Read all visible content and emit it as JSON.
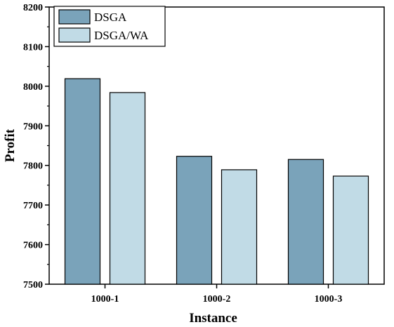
{
  "chart_data": {
    "type": "bar",
    "title": "",
    "xlabel": "Instance",
    "ylabel": "Profit",
    "categories": [
      "1000-1",
      "1000-2",
      "1000-3"
    ],
    "series": [
      {
        "name": "DSGA",
        "values": [
          8019,
          7823,
          7815
        ],
        "color": "#7aa3ba"
      },
      {
        "name": "DSGA/WA",
        "values": [
          7984,
          7789,
          7773
        ],
        "color": "#c1dbe6"
      }
    ],
    "ylim": [
      7500,
      8200
    ],
    "yticks": [
      7500,
      7600,
      7700,
      7800,
      7900,
      8000,
      8100,
      8200
    ],
    "grid": false,
    "legend_position": "top-left"
  }
}
